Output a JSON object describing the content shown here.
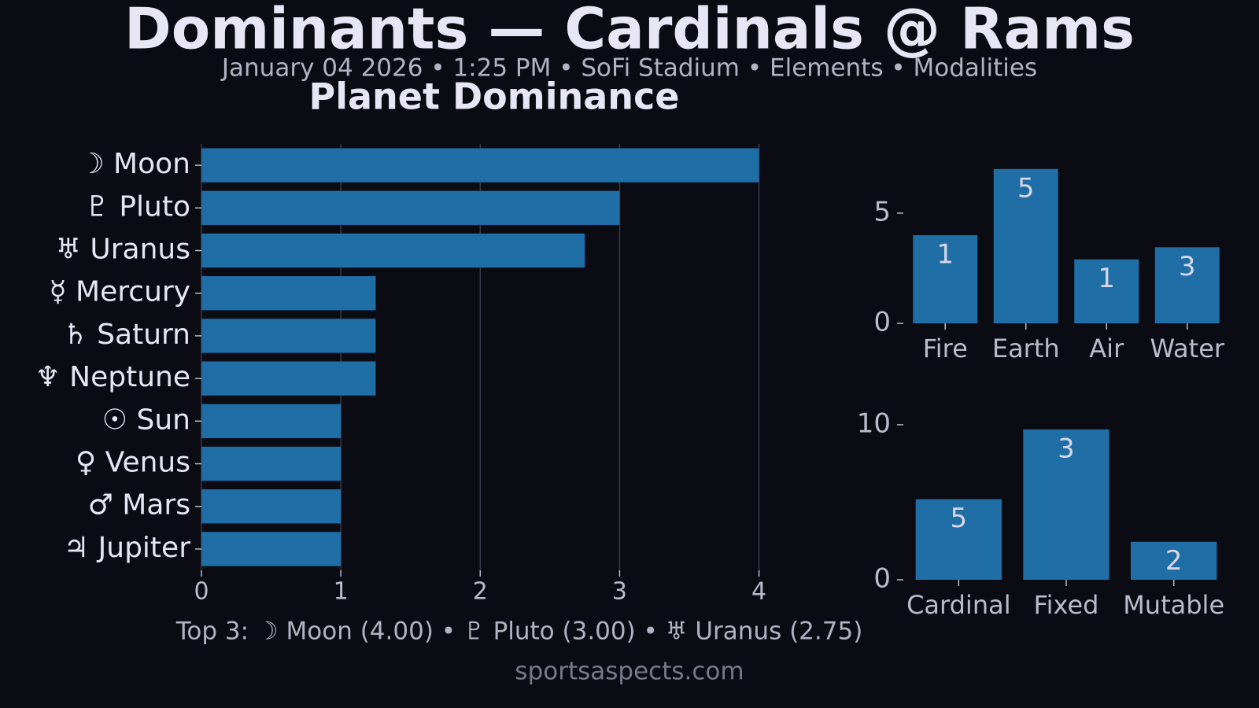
{
  "title": "Dominants — Cardinals @ Rams",
  "subtitle": "January 04 2026 • 1:25 PM • SoFi Stadium • Elements • Modalities",
  "footer_note": "Top 3: ☽ Moon (4.00) • ♇ Pluto (3.00) • ♅ Uranus (2.75)",
  "source": "sportsaspects.com",
  "chart_data": [
    {
      "type": "barh",
      "title": "Planet Dominance",
      "categories": [
        "☽ Moon",
        "♇ Pluto",
        "♅ Uranus",
        "☿ Mercury",
        "♄ Saturn",
        "♆ Neptune",
        "☉ Sun",
        "♀ Venus",
        "♂ Mars",
        "♃ Jupiter"
      ],
      "values": [
        4,
        3,
        2.75,
        1.25,
        1.25,
        1.25,
        1,
        1,
        1,
        1
      ],
      "color": "#1f6ea6",
      "xlim": [
        0,
        4.2
      ],
      "xticks": [
        0,
        1,
        2,
        3,
        4
      ],
      "grid": true
    },
    {
      "type": "bar",
      "categories": [
        "Fire",
        "Earth",
        "Air",
        "Water"
      ],
      "values": [
        4,
        7,
        2.9,
        3.45
      ],
      "counts": [
        1,
        5,
        1,
        3
      ],
      "color": "#1f6ea6",
      "ylim": [
        0,
        7.35
      ],
      "yticks": [
        0,
        5
      ]
    },
    {
      "type": "bar",
      "categories": [
        "Cardinal",
        "Fixed",
        "Mutable"
      ],
      "values": [
        5.2,
        9.7,
        2.45
      ],
      "counts": [
        5,
        3,
        2
      ],
      "color": "#1f6ea6",
      "ylim": [
        0,
        10.2
      ],
      "yticks": [
        0,
        10
      ]
    }
  ]
}
